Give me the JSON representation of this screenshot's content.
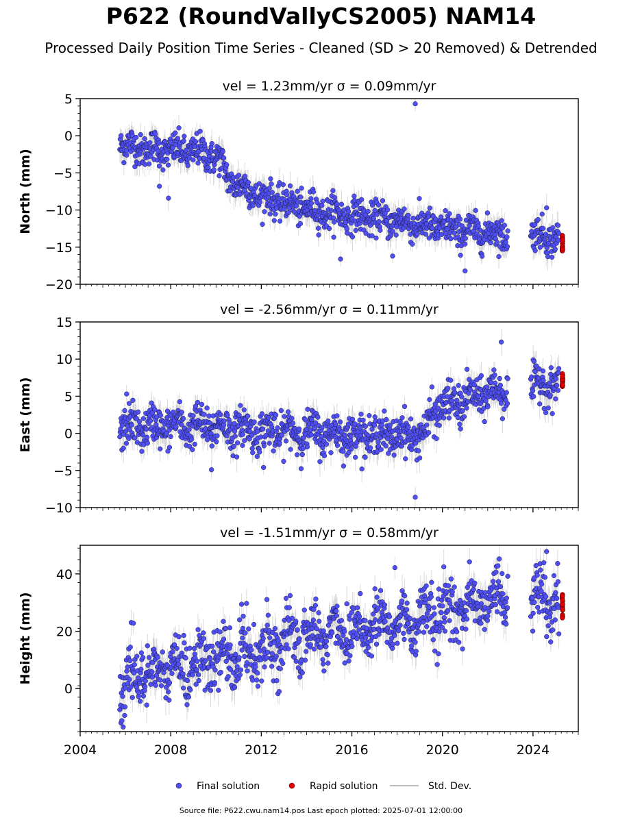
{
  "title": "P622 (RoundVallyCS2005) NAM14",
  "subtitle": "Processed Daily Position Time Series - Cleaned (SD > 20 Removed) & Detrended",
  "footer": "Source file: P622.cwu.nam14.pos  Last epoch plotted: 2025-07-01 12:00:00",
  "colors": {
    "final": "#4f4ff5",
    "rapid": "#e10000",
    "std": "#bdbdbd",
    "edge": "#1a1a3a"
  },
  "chart_data": {
    "type": "scatter",
    "x_ticks": [
      "2004",
      "2008",
      "2012",
      "2016",
      "2020",
      "2024"
    ],
    "xlim": [
      2004,
      2026
    ],
    "legend": {
      "placement": "bottom-center",
      "entries": [
        "Final solution",
        "Rapid solution",
        "Std. Dev."
      ]
    },
    "panels": [
      {
        "ylabel": "North (mm)",
        "annotation": "vel = 1.23mm/yr   σ = 0.09mm/yr",
        "ylim": [
          -20,
          5
        ],
        "y_ticks": [
          "5",
          "0",
          "−5",
          "−10",
          "−15",
          "−20"
        ],
        "y_tick_values": [
          5,
          0,
          -5,
          -10,
          -15,
          -20
        ],
        "trend": [
          [
            2005.75,
            -1.0
          ],
          [
            2006.5,
            -1.6
          ],
          [
            2008,
            -2.0
          ],
          [
            2009.5,
            -2.3
          ],
          [
            2010.1,
            -3.0
          ],
          [
            2010.6,
            -6.0
          ],
          [
            2012,
            -8.2
          ],
          [
            2014,
            -9.8
          ],
          [
            2016,
            -10.8
          ],
          [
            2018,
            -11.5
          ],
          [
            2020,
            -12.5
          ],
          [
            2022,
            -13.0
          ],
          [
            2022.9,
            -13.3
          ],
          [
            2023.9,
            -13.2
          ],
          [
            2025.3,
            -13.9
          ]
        ],
        "scatter_sd": 1.1,
        "error_sd": 1.4,
        "outliers": [
          [
            2007.5,
            -6.8
          ],
          [
            2007.9,
            -8.4
          ],
          [
            2015.5,
            -16.6
          ],
          [
            2017.8,
            -16.2
          ],
          [
            2018.8,
            4.3
          ],
          [
            2021,
            -18.2
          ],
          [
            2024.6,
            -9.7
          ]
        ],
        "rapid_mean": -14.6,
        "rapid_spread": 1.2
      },
      {
        "ylabel": "East (mm)",
        "annotation": "vel = -2.56mm/yr   σ = 0.11mm/yr",
        "ylim": [
          -10,
          15
        ],
        "y_ticks": [
          "15",
          "10",
          "5",
          "0",
          "−5",
          "−10"
        ],
        "y_tick_values": [
          15,
          10,
          5,
          0,
          -5,
          -10
        ],
        "trend": [
          [
            2005.75,
            0.8
          ],
          [
            2008,
            1.0
          ],
          [
            2010,
            0.9
          ],
          [
            2012,
            0.3
          ],
          [
            2014,
            0.1
          ],
          [
            2016,
            -0.2
          ],
          [
            2019.3,
            -0.2
          ],
          [
            2019.5,
            2.8
          ],
          [
            2020,
            3.6
          ],
          [
            2021,
            4.6
          ],
          [
            2022,
            5.4
          ],
          [
            2022.9,
            6.0
          ],
          [
            2023.9,
            6.3
          ],
          [
            2025.3,
            6.8
          ]
        ],
        "scatter_sd": 1.3,
        "error_sd": 1.5,
        "outliers": [
          [
            2006.05,
            5.3
          ],
          [
            2009.8,
            -4.9
          ],
          [
            2012.1,
            -4.6
          ],
          [
            2018.8,
            -8.6
          ],
          [
            2020.8,
            0.6
          ],
          [
            2022.6,
            12.3
          ]
        ],
        "rapid_mean": 7.2,
        "rapid_spread": 1.0
      },
      {
        "ylabel": "Height (mm)",
        "annotation": "vel = -1.51mm/yr   σ = 0.58mm/yr",
        "ylim": [
          -15,
          50
        ],
        "y_ticks": [
          "40",
          "20",
          "0"
        ],
        "y_tick_values": [
          40,
          20,
          0
        ],
        "trend": [
          [
            2005.75,
            0.0
          ],
          [
            2006.5,
            5.0
          ],
          [
            2008,
            7.0
          ],
          [
            2010,
            10.0
          ],
          [
            2012,
            14.0
          ],
          [
            2014,
            18.0
          ],
          [
            2016,
            21.0
          ],
          [
            2018,
            22.5
          ],
          [
            2020,
            26.0
          ],
          [
            2022,
            31.0
          ],
          [
            2022.9,
            35.0
          ],
          [
            2023.9,
            31.0
          ],
          [
            2025.3,
            29.0
          ]
        ],
        "scatter_sd": 5.0,
        "error_sd": 4.5,
        "outliers": [
          [
            2006.35,
            22.8
          ],
          [
            2017.9,
            42.2
          ],
          [
            2024.6,
            47.8
          ],
          [
            2005.9,
            -13.4
          ]
        ],
        "rapid_mean": 28.5,
        "rapid_spread": 4.5
      }
    ]
  }
}
